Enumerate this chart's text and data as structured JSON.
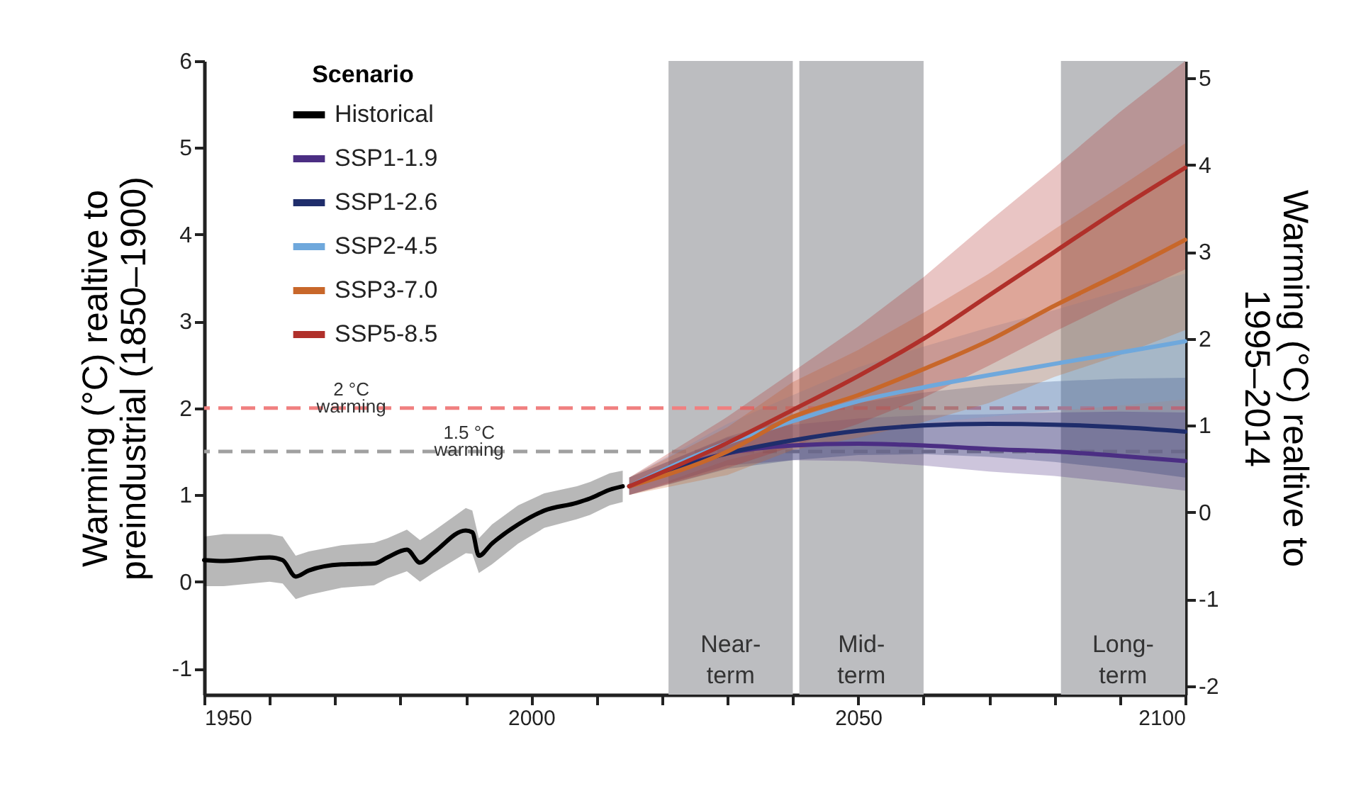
{
  "chart_data": {
    "type": "line",
    "xlabel": null,
    "ylabel": "Warming (°C) realtive to\npreindustrial (1850–1900)",
    "y2label": "Warming (°C) realtive to\n1995–2014",
    "legend_title": "Scenario",
    "legend": "top left",
    "xlim": [
      1950,
      2100
    ],
    "xticks": [
      1950,
      {
        "value": 1960,
        "label": null
      },
      {
        "value": 1970,
        "label": null
      },
      {
        "value": 1980,
        "label": null
      },
      {
        "value": 1990,
        "label": null
      },
      2000,
      {
        "value": 2010,
        "label": null
      },
      {
        "value": 2020,
        "label": null
      },
      {
        "value": 2030,
        "label": null
      },
      {
        "value": 2040,
        "label": null
      },
      2050,
      {
        "value": 2060,
        "label": null
      },
      {
        "value": 2070,
        "label": null
      },
      {
        "value": 2080,
        "label": null
      },
      {
        "value": 2090,
        "label": null
      },
      2100
    ],
    "ylim": [
      -1.3,
      6.0
    ],
    "yticks": [
      -1,
      0,
      1,
      2,
      3,
      4,
      5,
      6
    ],
    "y2lim": [
      -2.1,
      5.2
    ],
    "y2ticks": [
      -2,
      -1,
      0,
      1,
      2,
      3,
      4,
      5
    ],
    "line_style": "solid",
    "series": [
      {
        "name": "Historical",
        "color": "#000000",
        "x": [
          1950,
          1953,
          1960,
          1962,
          1964,
          1966,
          1971,
          1976,
          1978,
          1981,
          1983,
          1985,
          1990,
          1991,
          1992,
          1994,
          1998,
          2002,
          2007,
          2009,
          2012,
          2014
        ],
        "values": [
          0.25,
          0.24,
          0.28,
          0.25,
          0.06,
          0.13,
          0.2,
          0.21,
          0.28,
          0.37,
          0.22,
          0.33,
          0.59,
          0.57,
          0.3,
          0.44,
          0.66,
          0.82,
          0.91,
          0.96,
          1.06,
          1.1
        ],
        "lower": [
          -0.05,
          -0.05,
          0.0,
          -0.02,
          -0.2,
          -0.15,
          -0.07,
          -0.04,
          0.04,
          0.12,
          0.0,
          0.1,
          0.33,
          0.32,
          0.1,
          0.2,
          0.44,
          0.62,
          0.72,
          0.77,
          0.88,
          0.92
        ],
        "upper": [
          0.52,
          0.55,
          0.55,
          0.52,
          0.3,
          0.35,
          0.42,
          0.45,
          0.5,
          0.6,
          0.48,
          0.58,
          0.85,
          0.82,
          0.5,
          0.66,
          0.88,
          1.02,
          1.1,
          1.15,
          1.25,
          1.28
        ]
      },
      {
        "name": "SSP1-1.9",
        "color": "#4b2e83",
        "x": [
          2015,
          2030,
          2040,
          2050,
          2060,
          2070,
          2080,
          2090,
          2100
        ],
        "values": [
          1.1,
          1.48,
          1.57,
          1.59,
          1.57,
          1.53,
          1.5,
          1.45,
          1.39
        ],
        "lower": [
          1.0,
          1.34,
          1.4,
          1.39,
          1.34,
          1.27,
          1.22,
          1.14,
          1.05
        ],
        "upper": [
          1.2,
          1.66,
          1.81,
          1.88,
          1.92,
          1.93,
          1.95,
          1.96,
          1.95
        ]
      },
      {
        "name": "SSP1-2.6",
        "color": "#1f2d6b",
        "x": [
          2015,
          2030,
          2040,
          2050,
          2060,
          2070,
          2080,
          2090,
          2100
        ],
        "values": [
          1.1,
          1.48,
          1.63,
          1.74,
          1.8,
          1.82,
          1.81,
          1.78,
          1.73
        ],
        "lower": [
          1.0,
          1.3,
          1.4,
          1.46,
          1.47,
          1.44,
          1.38,
          1.3,
          1.2
        ],
        "upper": [
          1.2,
          1.67,
          1.89,
          2.06,
          2.18,
          2.26,
          2.31,
          2.34,
          2.35
        ]
      },
      {
        "name": "SSP2-4.5",
        "color": "#6fa8dc",
        "x": [
          2015,
          2030,
          2040,
          2050,
          2060,
          2070,
          2080,
          2090,
          2100
        ],
        "values": [
          1.1,
          1.6,
          1.85,
          2.08,
          2.24,
          2.38,
          2.51,
          2.64,
          2.77
        ],
        "lower": [
          1.0,
          1.4,
          1.58,
          1.74,
          1.83,
          1.9,
          1.97,
          2.03,
          2.1
        ],
        "upper": [
          1.2,
          1.82,
          2.15,
          2.47,
          2.71,
          2.93,
          3.13,
          3.35,
          3.55
        ]
      },
      {
        "name": "SSP3-7.0",
        "color": "#c8672a",
        "x": [
          2015,
          2030,
          2040,
          2050,
          2060,
          2070,
          2080,
          2090,
          2100
        ],
        "values": [
          1.1,
          1.5,
          1.9,
          2.15,
          2.45,
          2.78,
          3.18,
          3.55,
          3.94
        ],
        "lower": [
          1.0,
          1.23,
          1.52,
          1.66,
          1.84,
          2.06,
          2.36,
          2.61,
          2.9
        ],
        "upper": [
          1.2,
          1.78,
          2.3,
          2.67,
          3.1,
          3.55,
          4.06,
          4.55,
          5.05
        ]
      },
      {
        "name": "SSP5-8.5",
        "color": "#b0302a",
        "x": [
          2015,
          2030,
          2040,
          2050,
          2060,
          2070,
          2080,
          2090,
          2100
        ],
        "values": [
          1.1,
          1.6,
          1.98,
          2.37,
          2.8,
          3.3,
          3.8,
          4.3,
          4.77
        ],
        "lower": [
          1.0,
          1.31,
          1.56,
          1.82,
          2.12,
          2.49,
          2.88,
          3.25,
          3.6
        ],
        "upper": [
          1.2,
          1.9,
          2.42,
          2.94,
          3.51,
          4.15,
          4.77,
          5.41,
          6.0
        ]
      }
    ],
    "ref_lines": [
      {
        "axis": "y",
        "value": 2,
        "label": "2 °C\nwarming",
        "color": "#f08080",
        "line_style": "dashed"
      },
      {
        "axis": "y",
        "value": 1.5,
        "label": "1.5 °C\nwarming",
        "color": "#a0a0a0",
        "line_style": "dashed"
      }
    ],
    "bands": [
      {
        "axis": "x",
        "from": 2021,
        "to": 2040,
        "label": "Near-\nterm",
        "color": "#bcbdc0"
      },
      {
        "axis": "x",
        "from": 2041,
        "to": 2060,
        "label": "Mid-\nterm",
        "color": "#bcbdc0"
      },
      {
        "axis": "x",
        "from": 2081,
        "to": 2100,
        "label": "Long-\nterm",
        "color": "#bcbdc0"
      }
    ]
  }
}
